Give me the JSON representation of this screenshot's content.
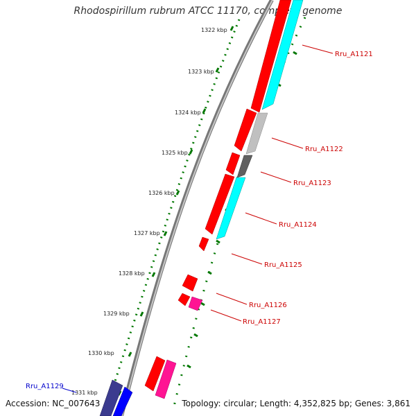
{
  "title": "Rhodospirillum rubrum ATCC 11170, complete genome",
  "footer": {
    "accession": "Accession: NC_007643",
    "info": "Topology: circular; Length: 4,352,825 bp; Genes: 3,861"
  },
  "ruler": {
    "ticks": [
      "1322 kbp",
      "1323 kbp",
      "1324 kbp",
      "1325 kbp",
      "1326 kbp",
      "1327 kbp",
      "1328 kbp",
      "1329 kbp",
      "1330 kbp",
      "1331 kbp"
    ]
  },
  "gene_labels": [
    {
      "text": "Rru_A1121",
      "color": "#cc0000"
    },
    {
      "text": "Rru_A1122",
      "color": "#cc0000"
    },
    {
      "text": "Rru_A1123",
      "color": "#cc0000"
    },
    {
      "text": "Rru_A1124",
      "color": "#cc0000"
    },
    {
      "text": "Rru_A1125",
      "color": "#cc0000"
    },
    {
      "text": "Rru_A1126",
      "color": "#cc0000"
    },
    {
      "text": "Rru_A1127",
      "color": "#cc0000"
    },
    {
      "text": "Rru_A1129",
      "color": "#0000cc"
    }
  ],
  "colors": {
    "backbone": "#888888",
    "forward_cds": "#ff0000",
    "reverse_cds": "#00ffff",
    "pink_feature": "#ff1493",
    "blue_cds": "#0000ff",
    "navy_cds": "#3b3b8f",
    "light_gray": "#c0c0c0",
    "dark_gray": "#606060",
    "tick_green": "#007700"
  }
}
